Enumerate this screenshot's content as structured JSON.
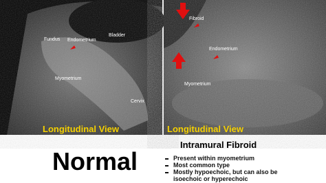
{
  "left_panel": {
    "labels": [
      "Fundus",
      "Endometrium",
      "Bladder",
      "Myometrium",
      "Cervix"
    ],
    "caption": "Longitudinal View"
  },
  "right_panel": {
    "labels": [
      "Fibroid",
      "Endometrium",
      "Myometrium"
    ],
    "caption": "Longitudinal View"
  },
  "bottom": {
    "left_title": "Normal",
    "right_title": "Intramural Fibroid",
    "bullets": [
      "Present within myometrium",
      "Most common type",
      "Mostly hypoechoic, but can also be isoechoic or hyperechoic"
    ]
  }
}
